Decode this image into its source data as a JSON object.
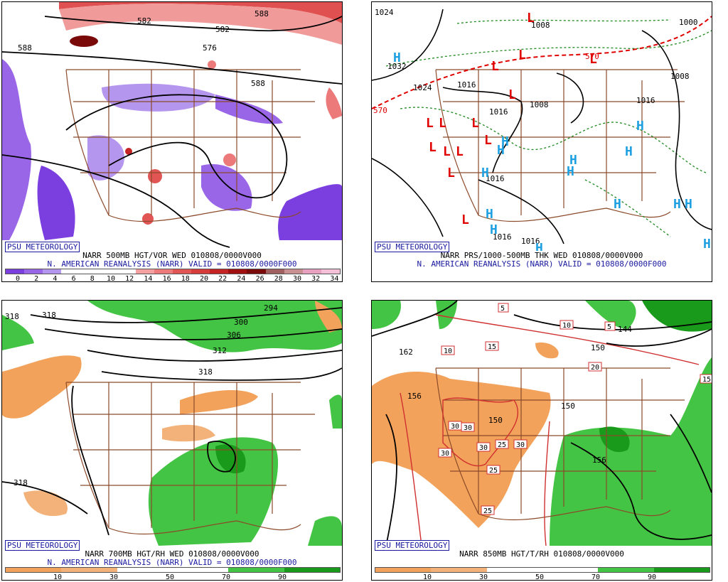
{
  "panels": {
    "vor500": {
      "logo": "PSU METEOROLOGY",
      "title": "NARR 500MB HGT/VOR WED 010808/0000V000",
      "subtitle": "N. AMERICAN REANALYSIS (NARR) VALID = 010808/0000F000",
      "scale_labels": [
        "0",
        "2",
        "4",
        "6",
        "8",
        "10",
        "12",
        "14",
        "16",
        "18",
        "20",
        "22",
        "24",
        "26",
        "28",
        "30",
        "32",
        "34"
      ],
      "scale_colors": [
        "#7b3fe0",
        "#9a66e8",
        "#b596ef",
        "#ffffff",
        "#ffffff",
        "#ffffff",
        "#ffffff",
        "#f4a0a0",
        "#ec7a7a",
        "#e25555",
        "#d63c3c",
        "#c42424",
        "#a01010",
        "#7a0a0a",
        "#a06060",
        "#c89090",
        "#e8a0c0",
        "#f4c0d8"
      ],
      "contour_labels": [
        "588",
        "588",
        "588",
        "582",
        "576",
        "582"
      ]
    },
    "prs1000": {
      "logo": "PSU METEOROLOGY",
      "title": "NARR PRS/1000-500MB THK WED 010808/0000V000",
      "subtitle": "N. AMERICAN REANALYSIS (NARR) VALID = 010808/0000F000",
      "isobar_labels": [
        "1024",
        "1032",
        "1024",
        "1016",
        "1016",
        "1008",
        "1016",
        "1016",
        "1016",
        "1016",
        "1000",
        "1008",
        "1008",
        "570",
        "570"
      ],
      "low_symbol": "L",
      "high_symbol": "H"
    },
    "rh700": {
      "logo": "PSU METEOROLOGY",
      "title": "NARR 700MB HGT/RH WED 010808/0000V000",
      "subtitle": "N. AMERICAN REANALYSIS (NARR) VALID = 010808/0000F000",
      "scale_labels": [
        "10",
        "30",
        "50",
        "70",
        "90"
      ],
      "scale_colors": [
        "#f2a25a",
        "#f2b27a",
        "#ffffff",
        "#ffffff",
        "#44c444",
        "#1a9a1a"
      ],
      "contour_labels": [
        "318",
        "318",
        "294",
        "300",
        "306",
        "312",
        "318",
        "318"
      ]
    },
    "t850": {
      "logo": "PSU METEOROLOGY",
      "title": "NARR 850MB HGT/T/RH 010808/0000V000",
      "scale_labels": [
        "10",
        "30",
        "50",
        "70",
        "90"
      ],
      "scale_colors": [
        "#f2a25a",
        "#f2b27a",
        "#ffffff",
        "#ffffff",
        "#44c444",
        "#1a9a1a"
      ],
      "contour_labels": [
        "162",
        "156",
        "150",
        "150",
        "156",
        "150",
        "144"
      ],
      "temp_labels": [
        "10",
        "10",
        "15",
        "20",
        "15",
        "5",
        "30",
        "30",
        "30",
        "30",
        "25",
        "30",
        "25",
        "25",
        "5"
      ]
    }
  },
  "colors": {
    "state_lines": "#8b4a2a",
    "height_contours": "#000000",
    "thickness_contours": "#1f8a1f",
    "freezing_line": "#e00000",
    "low_color": "#e00000",
    "high_color": "#1ea0e0",
    "logo_color": "#1a1aa0"
  }
}
